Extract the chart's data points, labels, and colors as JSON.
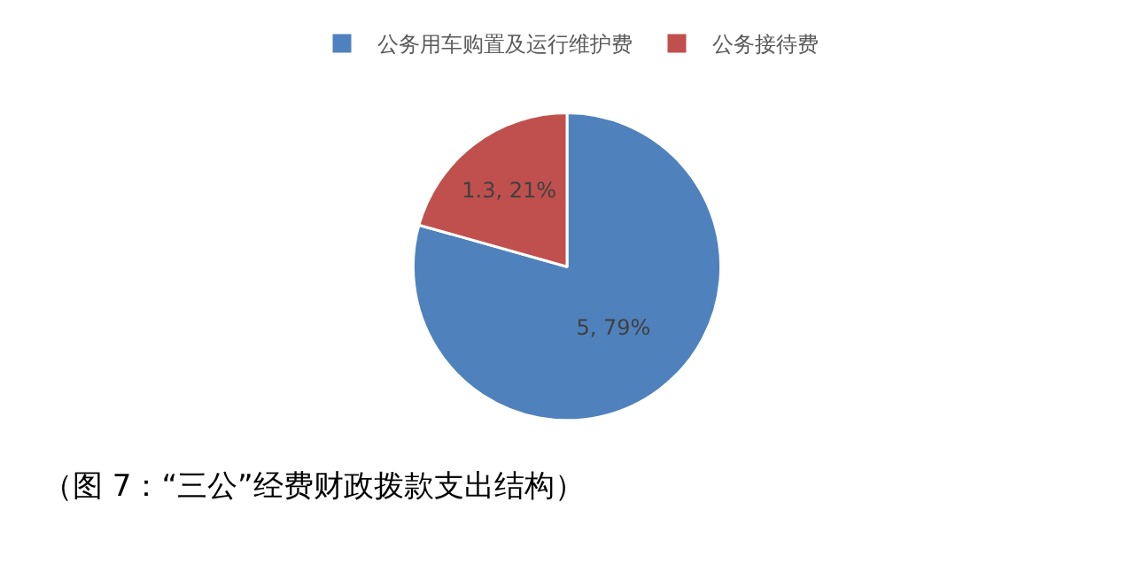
{
  "chart_data": {
    "type": "pie",
    "categories": [
      "公务用车购置及运行维护费",
      "公务接待费"
    ],
    "values": [
      5,
      1.3
    ],
    "colors": [
      "#4f81bd",
      "#c0504d"
    ],
    "value_labels": [
      "5, 79%",
      "1.3, 21%"
    ],
    "legend": "top",
    "annotations": [
      "（图 7：“三公”经费财政拨款支出结构）"
    ]
  }
}
